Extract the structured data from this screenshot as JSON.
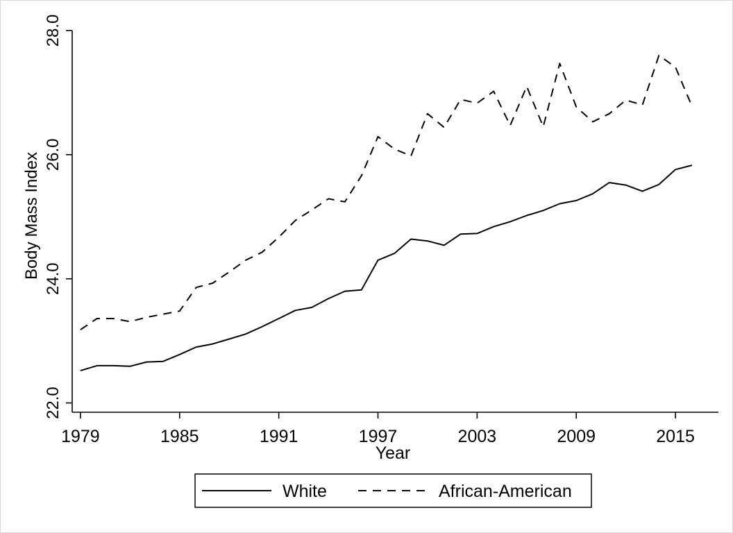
{
  "chart_data": {
    "type": "line",
    "xlabel": "Year",
    "ylabel": "Body Mass Index",
    "x_ticks": [
      1979,
      1985,
      1991,
      1997,
      2003,
      2009,
      2015
    ],
    "x_tick_labels": [
      "1979",
      "1985",
      "1991",
      "1997",
      "2003",
      "2009",
      "2015"
    ],
    "y_ticks": [
      22,
      24,
      26,
      28
    ],
    "y_tick_labels": [
      "22.0",
      "24.0",
      "26.0",
      "28.0"
    ],
    "xlim": [
      1978.5,
      2017.6
    ],
    "ylim": [
      21.85,
      28.0
    ],
    "grid": false,
    "legend_position": "bottom",
    "x": [
      1979,
      1980,
      1981,
      1982,
      1983,
      1984,
      1985,
      1986,
      1987,
      1988,
      1989,
      1990,
      1991,
      1992,
      1993,
      1994,
      1995,
      1996,
      1997,
      1998,
      1999,
      2000,
      2001,
      2002,
      2003,
      2004,
      2005,
      2006,
      2007,
      2008,
      2009,
      2010,
      2011,
      2012,
      2013,
      2014,
      2015,
      2016
    ],
    "series": [
      {
        "name": "White",
        "dash": "solid",
        "color": "#000000",
        "values": [
          22.52,
          22.6,
          22.6,
          22.59,
          22.66,
          22.67,
          22.78,
          22.9,
          22.95,
          23.03,
          23.11,
          23.23,
          23.36,
          23.49,
          23.54,
          23.68,
          23.8,
          23.82,
          24.3,
          24.41,
          24.64,
          24.61,
          24.54,
          24.72,
          24.73,
          24.84,
          24.92,
          25.02,
          25.1,
          25.21,
          25.26,
          25.37,
          25.55,
          25.51,
          25.41,
          25.52,
          25.76,
          25.83
        ]
      },
      {
        "name": "African-American",
        "dash": "dashed",
        "color": "#000000",
        "values": [
          23.18,
          23.36,
          23.36,
          23.31,
          23.38,
          23.43,
          23.48,
          23.86,
          23.93,
          24.11,
          24.3,
          24.43,
          24.67,
          24.94,
          25.11,
          25.29,
          25.24,
          25.66,
          26.29,
          26.09,
          25.98,
          26.66,
          26.44,
          26.89,
          26.83,
          27.02,
          26.47,
          27.1,
          26.45,
          27.47,
          26.77,
          26.53,
          26.66,
          26.88,
          26.8,
          27.6,
          27.41,
          26.78
        ]
      }
    ]
  }
}
